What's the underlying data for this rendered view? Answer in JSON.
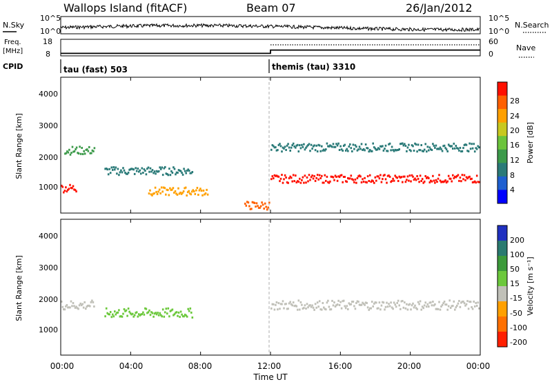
{
  "header": {
    "site": "Wallops Island (fitACF)",
    "beam": "Beam 07",
    "date": "26/Jan/2012"
  },
  "nsky_panel": {
    "left_label": "N.Sky",
    "left_ticks": [
      "10^5",
      "10^0"
    ],
    "right_label": "N.Search",
    "right_ticks": [
      "10^5",
      "10^0"
    ]
  },
  "freq_panel": {
    "left_label_line1": "Freq.",
    "left_label_line2": "[MHz]",
    "left_ticks": [
      "18",
      "8"
    ],
    "right_label": "Nave",
    "right_ticks": [
      "60",
      "0"
    ]
  },
  "cpid": {
    "label": "CPID",
    "segments": [
      {
        "name": "tau (fast) 503",
        "start_hour": 0
      },
      {
        "name": "themis (tau) 3310",
        "start_hour": 12
      }
    ]
  },
  "power_panel": {
    "ylabel": "Slant Range [km]",
    "yticks": [
      "4000",
      "3000",
      "2000",
      "1000"
    ],
    "colorbar_label": "Power [dB]",
    "colorbar_ticks": [
      "28",
      "24",
      "20",
      "16",
      "12",
      "8",
      "4"
    ],
    "colors": [
      "#0000ff",
      "#1e5fd0",
      "#2a7a78",
      "#3c9a4a",
      "#6cc43c",
      "#c8c820",
      "#ffa000",
      "#ff6000",
      "#ff1000"
    ]
  },
  "velocity_panel": {
    "ylabel": "Slant Range [km]",
    "yticks": [
      "4000",
      "3000",
      "2000",
      "1000"
    ],
    "colorbar_label": "Velocity [m s⁻¹]",
    "colorbar_ticks": [
      "200",
      "100",
      "50",
      "15",
      "-15",
      "-50",
      "-100",
      "-200"
    ],
    "colors": [
      "#2030c0",
      "#2a7a70",
      "#3c9a3a",
      "#6cc83c",
      "#c0c0b8",
      "#ffa000",
      "#ff7000",
      "#ff2000"
    ]
  },
  "xaxis": {
    "ticks": [
      "00:00",
      "04:00",
      "08:00",
      "12:00",
      "16:00",
      "20:00",
      "00:00"
    ],
    "label": "Time UT"
  },
  "chart_data": {
    "type": "heatmap",
    "title": "Wallops Island (fitACF) Beam 07 26/Jan/2012",
    "x_range_hours": [
      0,
      24
    ],
    "y_range_km": [
      180,
      4500
    ],
    "xlabel": "Time UT",
    "ylabel": "Slant Range [km]",
    "cpid_change_hour": 12,
    "freq_mhz_before": 9.5,
    "freq_mhz_after": 11.5,
    "nave_after": 40,
    "power_features": [
      {
        "t_start": 0.0,
        "t_end": 0.9,
        "range_center": 1000,
        "power_db": 28
      },
      {
        "t_start": 0.2,
        "t_end": 1.9,
        "range_center": 2200,
        "power_db": 10
      },
      {
        "t_start": 2.5,
        "t_end": 7.5,
        "range_center": 1550,
        "power_db": 8
      },
      {
        "t_start": 5.0,
        "t_end": 8.4,
        "range_center": 900,
        "power_db": 20
      },
      {
        "t_start": 10.5,
        "t_end": 11.9,
        "range_center": 450,
        "power_db": 24
      },
      {
        "t_start": 12.0,
        "t_end": 23.9,
        "range_center": 1300,
        "power_db": 28
      },
      {
        "t_start": 12.0,
        "t_end": 23.9,
        "range_center": 2300,
        "power_db": 6
      }
    ],
    "velocity_features": [
      {
        "t_start": 0.0,
        "t_end": 1.9,
        "range_center": 1800,
        "velocity_ms": 0
      },
      {
        "t_start": 2.5,
        "t_end": 7.5,
        "range_center": 1550,
        "velocity_ms": 30
      },
      {
        "t_start": 12.0,
        "t_end": 23.9,
        "range_center": 1800,
        "velocity_ms": 0
      }
    ]
  }
}
